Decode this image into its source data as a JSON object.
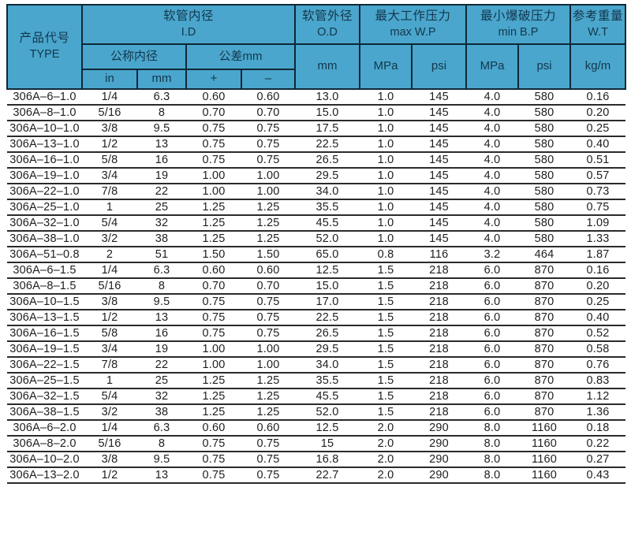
{
  "colors": {
    "header_bg": "#4AA6CC",
    "header_text": "#14364D",
    "header_line": "#0F2837",
    "grid_line": "#2A2A2A"
  },
  "header": {
    "type": {
      "line1": "产品代号",
      "line2": "TYPE"
    },
    "id_group": {
      "line1": "软管内径",
      "line2": "I.D"
    },
    "nominal_id": "公称内径",
    "tolerance": "公差mm",
    "unit_in": "in",
    "unit_mm": "mm",
    "tol_plus": "+",
    "tol_minus": "–",
    "od_group": {
      "line1": "软管外径",
      "line2": "O.D"
    },
    "od_unit": "mm",
    "wp_group": {
      "line1": "最大工作压力",
      "line2": "max W.P"
    },
    "wp_mpa": "MPa",
    "wp_psi": "psi",
    "bp_group": {
      "line1": "最小爆破压力",
      "line2": "min B.P"
    },
    "bp_mpa": "MPa",
    "bp_psi": "psi",
    "wt_group": {
      "line1": "参考重量",
      "line2": "W.T"
    },
    "wt_unit": "kg/m"
  },
  "table": {
    "column_keys": [
      "type",
      "id_in",
      "id_mm",
      "tol_plus",
      "tol_minus",
      "od_mm",
      "wp_mpa",
      "wp_psi",
      "bp_mpa",
      "bp_psi",
      "wt_kgm"
    ],
    "rows": [
      [
        "306A–6–1.0",
        "1/4",
        "6.3",
        "0.60",
        "0.60",
        "13.0",
        "1.0",
        "145",
        "4.0",
        "580",
        "0.16"
      ],
      [
        "306A–8–1.0",
        "5/16",
        "8",
        "0.70",
        "0.70",
        "15.0",
        "1.0",
        "145",
        "4.0",
        "580",
        "0.20"
      ],
      [
        "306A–10–1.0",
        "3/8",
        "9.5",
        "0.75",
        "0.75",
        "17.5",
        "1.0",
        "145",
        "4.0",
        "580",
        "0.25"
      ],
      [
        "306A–13–1.0",
        "1/2",
        "13",
        "0.75",
        "0.75",
        "22.5",
        "1.0",
        "145",
        "4.0",
        "580",
        "0.40"
      ],
      [
        "306A–16–1.0",
        "5/8",
        "16",
        "0.75",
        "0.75",
        "26.5",
        "1.0",
        "145",
        "4.0",
        "580",
        "0.51"
      ],
      [
        "306A–19–1.0",
        "3/4",
        "19",
        "1.00",
        "1.00",
        "29.5",
        "1.0",
        "145",
        "4.0",
        "580",
        "0.57"
      ],
      [
        "306A–22–1.0",
        "7/8",
        "22",
        "1.00",
        "1.00",
        "34.0",
        "1.0",
        "145",
        "4.0",
        "580",
        "0.73"
      ],
      [
        "306A–25–1.0",
        "1",
        "25",
        "1.25",
        "1.25",
        "35.5",
        "1.0",
        "145",
        "4.0",
        "580",
        "0.75"
      ],
      [
        "306A–32–1.0",
        "5/4",
        "32",
        "1.25",
        "1.25",
        "45.5",
        "1.0",
        "145",
        "4.0",
        "580",
        "1.09"
      ],
      [
        "306A–38–1.0",
        "3/2",
        "38",
        "1.25",
        "1.25",
        "52.0",
        "1.0",
        "145",
        "4.0",
        "580",
        "1.33"
      ],
      [
        "306A–51–0.8",
        "2",
        "51",
        "1.50",
        "1.50",
        "65.0",
        "0.8",
        "116",
        "3.2",
        "464",
        "1.87"
      ],
      [
        "306A–6–1.5",
        "1/4",
        "6.3",
        "0.60",
        "0.60",
        "12.5",
        "1.5",
        "218",
        "6.0",
        "870",
        "0.16"
      ],
      [
        "306A–8–1.5",
        "5/16",
        "8",
        "0.70",
        "0.70",
        "15.0",
        "1.5",
        "218",
        "6.0",
        "870",
        "0.20"
      ],
      [
        "306A–10–1.5",
        "3/8",
        "9.5",
        "0.75",
        "0.75",
        "17.0",
        "1.5",
        "218",
        "6.0",
        "870",
        "0.25"
      ],
      [
        "306A–13–1.5",
        "1/2",
        "13",
        "0.75",
        "0.75",
        "22.5",
        "1.5",
        "218",
        "6.0",
        "870",
        "0.40"
      ],
      [
        "306A–16–1.5",
        "5/8",
        "16",
        "0.75",
        "0.75",
        "26.5",
        "1.5",
        "218",
        "6.0",
        "870",
        "0.52"
      ],
      [
        "306A–19–1.5",
        "3/4",
        "19",
        "1.00",
        "1.00",
        "29.5",
        "1.5",
        "218",
        "6.0",
        "870",
        "0.58"
      ],
      [
        "306A–22–1.5",
        "7/8",
        "22",
        "1.00",
        "1.00",
        "34.0",
        "1.5",
        "218",
        "6.0",
        "870",
        "0.76"
      ],
      [
        "306A–25–1.5",
        "1",
        "25",
        "1.25",
        "1.25",
        "35.5",
        "1.5",
        "218",
        "6.0",
        "870",
        "0.83"
      ],
      [
        "306A–32–1.5",
        "5/4",
        "32",
        "1.25",
        "1.25",
        "45.5",
        "1.5",
        "218",
        "6.0",
        "870",
        "1.12"
      ],
      [
        "306A–38–1.5",
        "3/2",
        "38",
        "1.25",
        "1.25",
        "52.0",
        "1.5",
        "218",
        "6.0",
        "870",
        "1.36"
      ],
      [
        "306A–6–2.0",
        "1/4",
        "6.3",
        "0.60",
        "0.60",
        "12.5",
        "2.0",
        "290",
        "8.0",
        "1160",
        "0.18"
      ],
      [
        "306A–8–2.0",
        "5/16",
        "8",
        "0.75",
        "0.75",
        "15",
        "2.0",
        "290",
        "8.0",
        "1160",
        "0.22"
      ],
      [
        "306A–10–2.0",
        "3/8",
        "9.5",
        "0.75",
        "0.75",
        "16.8",
        "2.0",
        "290",
        "8.0",
        "1160",
        "0.27"
      ],
      [
        "306A–13–2.0",
        "1/2",
        "13",
        "0.75",
        "0.75",
        "22.7",
        "2.0",
        "290",
        "8.0",
        "1160",
        "0.43"
      ]
    ]
  }
}
